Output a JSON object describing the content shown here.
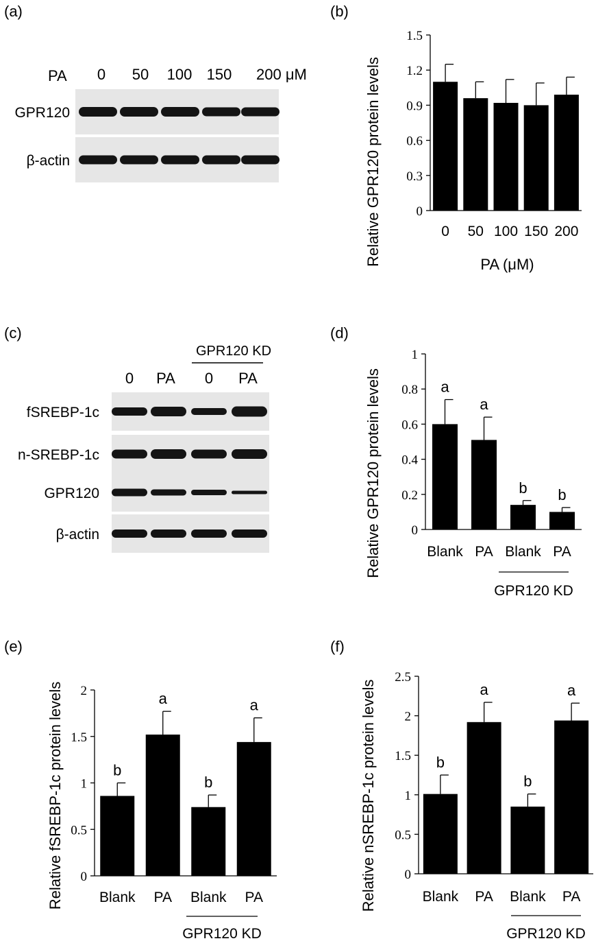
{
  "colors": {
    "bar": "#000000",
    "axis": "#000000",
    "blot_bg": "#e6e6e6",
    "band": "#141414"
  },
  "blot_a": {
    "panel_label": "(a)",
    "treatment_label": "PA",
    "lanes": [
      "0",
      "50",
      "100",
      "150",
      "200 μM"
    ],
    "rows": [
      "GPR120",
      "β-actin"
    ]
  },
  "blot_c": {
    "panel_label": "(c)",
    "group_label": "GPR120 KD",
    "lanes": [
      "0",
      "PA",
      "0",
      "PA"
    ],
    "rows": [
      "fSREBP-1c",
      "n-SREBP-1c",
      "GPR120",
      "β-actin"
    ]
  },
  "chart_data": [
    {
      "id": "b",
      "panel_label": "(b)",
      "type": "bar",
      "categories": [
        "0",
        "50",
        "100",
        "150",
        "200"
      ],
      "values": [
        1.1,
        0.96,
        0.92,
        0.9,
        0.99
      ],
      "errors": [
        0.15,
        0.14,
        0.2,
        0.19,
        0.15
      ],
      "ylabel": "Relative  GPR120  protein levels",
      "xlabel": "PA (μM)",
      "ylim": [
        0,
        1.5
      ],
      "yticks": [
        "0",
        "0.3",
        "0.6",
        "0.9",
        "1.2",
        "1.5"
      ],
      "sig_letters": [],
      "group_label": ""
    },
    {
      "id": "d",
      "panel_label": "(d)",
      "type": "bar",
      "categories": [
        "Blank",
        "PA",
        "Blank",
        "PA"
      ],
      "values": [
        0.6,
        0.51,
        0.14,
        0.1
      ],
      "errors": [
        0.14,
        0.13,
        0.025,
        0.025
      ],
      "ylabel": "Relative GPR120 protein levels",
      "xlabel": "",
      "ylim": [
        0,
        1
      ],
      "yticks": [
        "0",
        "0.2",
        "0.4",
        "0.6",
        "0.8",
        "1"
      ],
      "sig_letters": [
        "a",
        "a",
        "b",
        "b"
      ],
      "group_label": "GPR120 KD"
    },
    {
      "id": "e",
      "panel_label": "(e)",
      "type": "bar",
      "categories": [
        "Blank",
        "PA",
        "Blank",
        "PA"
      ],
      "values": [
        0.86,
        1.52,
        0.74,
        1.44
      ],
      "errors": [
        0.14,
        0.25,
        0.13,
        0.26
      ],
      "ylabel": "Relative fSREBP-1c protein levels",
      "xlabel": "",
      "ylim": [
        0,
        2
      ],
      "yticks": [
        "0",
        "0.5",
        "1",
        "1.5",
        "2"
      ],
      "sig_letters": [
        "b",
        "a",
        "b",
        "a"
      ],
      "group_label": "GPR120 KD"
    },
    {
      "id": "f",
      "panel_label": "(f)",
      "type": "bar",
      "categories": [
        "Blank",
        "PA",
        "Blank",
        "PA"
      ],
      "values": [
        1.01,
        1.92,
        0.85,
        1.94
      ],
      "errors": [
        0.24,
        0.25,
        0.16,
        0.22
      ],
      "ylabel": "Relative nSREBP-1c protein levels",
      "xlabel": "",
      "ylim": [
        0,
        2.5
      ],
      "yticks": [
        "0",
        "0.5",
        "1",
        "1.5",
        "2",
        "2.5"
      ],
      "sig_letters": [
        "b",
        "a",
        "b",
        "a"
      ],
      "group_label": "GPR120 KD"
    }
  ]
}
